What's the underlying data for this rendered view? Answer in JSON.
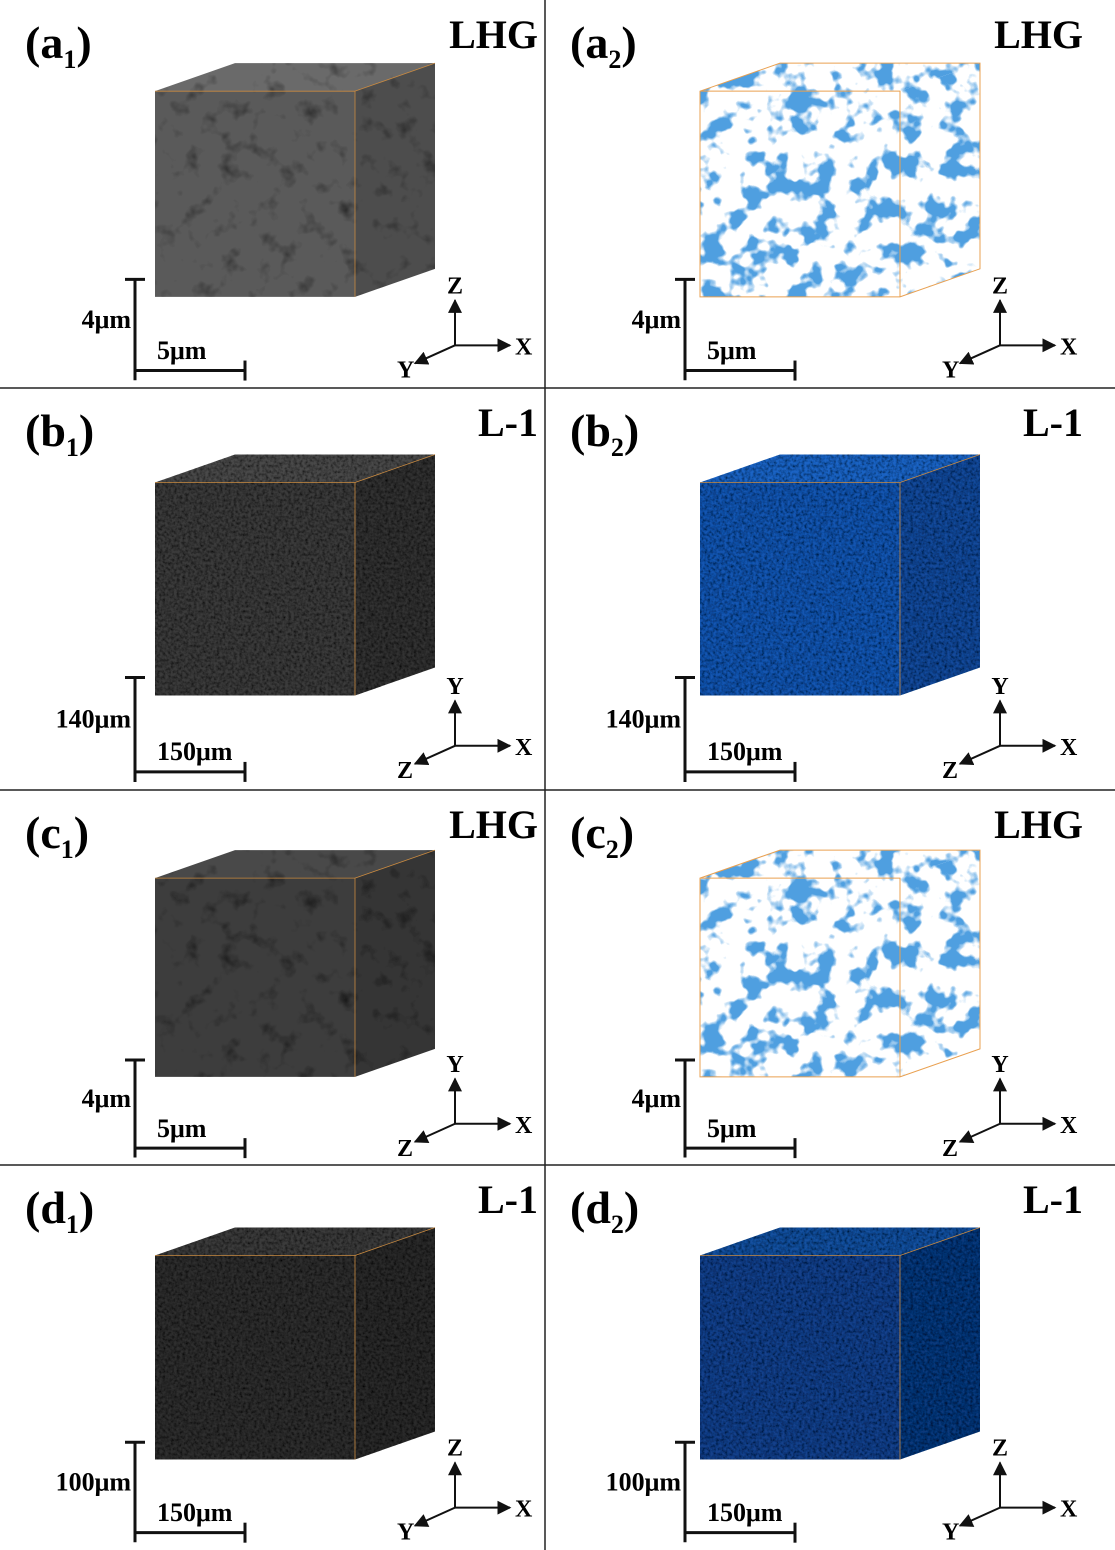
{
  "panels": [
    {
      "label": {
        "open": "(a",
        "subscript": "1",
        "close": ")"
      },
      "sample": "LHG",
      "scale_vertical": "4μm",
      "scale_horizontal": "5μm",
      "axes": {
        "up": "Z",
        "right": "X",
        "left": "Y"
      }
    },
    {
      "label": {
        "open": "(a",
        "subscript": "2",
        "close": ")"
      },
      "sample": "LHG",
      "scale_vertical": "4μm",
      "scale_horizontal": "5μm",
      "axes": {
        "up": "Z",
        "right": "X",
        "left": "Y"
      }
    },
    {
      "label": {
        "open": "(b",
        "subscript": "1",
        "close": ")"
      },
      "sample": "L-1",
      "scale_vertical": "140μm",
      "scale_horizontal": "150μm",
      "axes": {
        "up": "Y",
        "right": "X",
        "left": "Z"
      }
    },
    {
      "label": {
        "open": "(b",
        "subscript": "2",
        "close": ")"
      },
      "sample": "L-1",
      "scale_vertical": "140μm",
      "scale_horizontal": "150μm",
      "axes": {
        "up": "Y",
        "right": "X",
        "left": "Z"
      }
    },
    {
      "label": {
        "open": "(c",
        "subscript": "1",
        "close": ")"
      },
      "sample": "LHG",
      "scale_vertical": "4μm",
      "scale_horizontal": "5μm",
      "axes": {
        "up": "Y",
        "right": "X",
        "left": "Z"
      }
    },
    {
      "label": {
        "open": "(c",
        "subscript": "2",
        "close": ")"
      },
      "sample": "LHG",
      "scale_vertical": "4μm",
      "scale_horizontal": "5μm",
      "axes": {
        "up": "Y",
        "right": "X",
        "left": "Z"
      }
    },
    {
      "label": {
        "open": "(d",
        "subscript": "1",
        "close": ")"
      },
      "sample": "L-1",
      "scale_vertical": "100μm",
      "scale_horizontal": "150μm",
      "axes": {
        "up": "Z",
        "right": "X",
        "left": "Y"
      }
    },
    {
      "label": {
        "open": "(d",
        "subscript": "2",
        "close": ")"
      },
      "sample": "L-1",
      "scale_vertical": "100μm",
      "scale_horizontal": "150μm",
      "axes": {
        "up": "Z",
        "right": "X",
        "left": "Y"
      }
    }
  ]
}
